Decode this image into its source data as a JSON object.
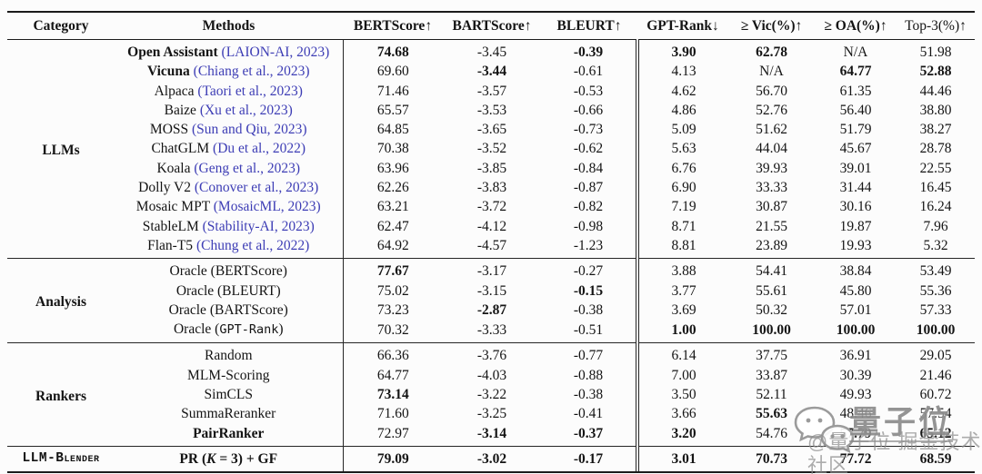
{
  "table": {
    "headers": [
      {
        "label": "Category"
      },
      {
        "label": "Methods"
      },
      {
        "label": "BERTScore↑"
      },
      {
        "label": "BARTScore↑"
      },
      {
        "label": "BLEURT↑"
      },
      {
        "label": "GPT-Rank↓"
      },
      {
        "label": "≥ Vic(%)↑"
      },
      {
        "label": "≥ OA(%)↑"
      },
      {
        "label": "Top-3(%)↑"
      }
    ],
    "sections": [
      {
        "id": "llms",
        "category": "LLMs",
        "category_mono": false,
        "rows": [
          {
            "name": [
              {
                "t": "Open Assistant ",
                "b": 1
              },
              {
                "t": "(LAION-AI, 2023)",
                "c": 1
              }
            ],
            "values": [
              "74.68",
              "-3.45",
              "-0.39",
              "3.90",
              "62.78",
              "N/A",
              "51.98"
            ],
            "bold": [
              1,
              0,
              1,
              1,
              1,
              0,
              0
            ]
          },
          {
            "name": [
              {
                "t": "Vicuna ",
                "b": 1
              },
              {
                "t": "(Chiang et al., 2023)",
                "c": 1
              }
            ],
            "values": [
              "69.60",
              "-3.44",
              "-0.61",
              "4.13",
              "N/A",
              "64.77",
              "52.88"
            ],
            "bold": [
              0,
              1,
              0,
              0,
              0,
              1,
              1
            ]
          },
          {
            "name": [
              {
                "t": "Alpaca "
              },
              {
                "t": "(Taori et al., 2023)",
                "c": 1
              }
            ],
            "values": [
              "71.46",
              "-3.57",
              "-0.53",
              "4.62",
              "56.70",
              "61.35",
              "44.46"
            ],
            "bold": [
              0,
              0,
              0,
              0,
              0,
              0,
              0
            ]
          },
          {
            "name": [
              {
                "t": "Baize "
              },
              {
                "t": "(Xu et al., 2023)",
                "c": 1
              }
            ],
            "values": [
              "65.57",
              "-3.53",
              "-0.66",
              "4.86",
              "52.76",
              "56.40",
              "38.80"
            ],
            "bold": [
              0,
              0,
              0,
              0,
              0,
              0,
              0
            ]
          },
          {
            "name": [
              {
                "t": "MOSS "
              },
              {
                "t": "(Sun and Qiu, 2023)",
                "c": 1
              }
            ],
            "values": [
              "64.85",
              "-3.65",
              "-0.73",
              "5.09",
              "51.62",
              "51.79",
              "38.27"
            ],
            "bold": [
              0,
              0,
              0,
              0,
              0,
              0,
              0
            ]
          },
          {
            "name": [
              {
                "t": "ChatGLM "
              },
              {
                "t": "(Du et al., 2022)",
                "c": 1
              }
            ],
            "values": [
              "70.38",
              "-3.52",
              "-0.62",
              "5.63",
              "44.04",
              "45.67",
              "28.78"
            ],
            "bold": [
              0,
              0,
              0,
              0,
              0,
              0,
              0
            ]
          },
          {
            "name": [
              {
                "t": "Koala "
              },
              {
                "t": "(Geng et al., 2023)",
                "c": 1
              }
            ],
            "values": [
              "63.96",
              "-3.85",
              "-0.84",
              "6.76",
              "39.93",
              "39.01",
              "22.55"
            ],
            "bold": [
              0,
              0,
              0,
              0,
              0,
              0,
              0
            ]
          },
          {
            "name": [
              {
                "t": "Dolly V2 "
              },
              {
                "t": "(Conover et al., 2023)",
                "c": 1
              }
            ],
            "values": [
              "62.26",
              "-3.83",
              "-0.87",
              "6.90",
              "33.33",
              "31.44",
              "16.45"
            ],
            "bold": [
              0,
              0,
              0,
              0,
              0,
              0,
              0
            ]
          },
          {
            "name": [
              {
                "t": "Mosaic MPT "
              },
              {
                "t": "(MosaicML, 2023)",
                "c": 1
              }
            ],
            "values": [
              "63.21",
              "-3.72",
              "-0.82",
              "7.19",
              "30.87",
              "30.16",
              "16.24"
            ],
            "bold": [
              0,
              0,
              0,
              0,
              0,
              0,
              0
            ]
          },
          {
            "name": [
              {
                "t": "StableLM "
              },
              {
                "t": "(Stability-AI, 2023)",
                "c": 1
              }
            ],
            "values": [
              "62.47",
              "-4.12",
              "-0.98",
              "8.71",
              "21.55",
              "19.87",
              "7.96"
            ],
            "bold": [
              0,
              0,
              0,
              0,
              0,
              0,
              0
            ]
          },
          {
            "name": [
              {
                "t": "Flan-T5 "
              },
              {
                "t": "(Chung et al., 2022)",
                "c": 1
              }
            ],
            "values": [
              "64.92",
              "-4.57",
              "-1.23",
              "8.81",
              "23.89",
              "19.93",
              "5.32"
            ],
            "bold": [
              0,
              0,
              0,
              0,
              0,
              0,
              0
            ]
          }
        ]
      },
      {
        "id": "analysis",
        "category": "Analysis",
        "category_mono": false,
        "rows": [
          {
            "name": [
              {
                "t": "Oracle (BERTScore)"
              }
            ],
            "values": [
              "77.67",
              "-3.17",
              "-0.27",
              "3.88",
              "54.41",
              "38.84",
              "53.49"
            ],
            "bold": [
              1,
              0,
              0,
              0,
              0,
              0,
              0
            ]
          },
          {
            "name": [
              {
                "t": "Oracle (BLEURT)"
              }
            ],
            "values": [
              "75.02",
              "-3.15",
              "-0.15",
              "3.77",
              "55.61",
              "45.80",
              "55.36"
            ],
            "bold": [
              0,
              0,
              1,
              0,
              0,
              0,
              0
            ]
          },
          {
            "name": [
              {
                "t": "Oracle (BARTScore)"
              }
            ],
            "values": [
              "73.23",
              "-2.87",
              "-0.38",
              "3.69",
              "50.32",
              "57.01",
              "57.33"
            ],
            "bold": [
              0,
              1,
              0,
              0,
              0,
              0,
              0
            ]
          },
          {
            "name": [
              {
                "t": "Oracle ("
              },
              {
                "t": "GPT-Rank",
                "m": 1
              },
              {
                "t": ")"
              }
            ],
            "values": [
              "70.32",
              "-3.33",
              "-0.51",
              "1.00",
              "100.00",
              "100.00",
              "100.00"
            ],
            "bold": [
              0,
              0,
              0,
              1,
              1,
              1,
              1
            ]
          }
        ]
      },
      {
        "id": "rankers",
        "category": "Rankers",
        "category_mono": false,
        "rows": [
          {
            "name": [
              {
                "t": "Random"
              }
            ],
            "values": [
              "66.36",
              "-3.76",
              "-0.77",
              "6.14",
              "37.75",
              "36.91",
              "29.05"
            ],
            "bold": [
              0,
              0,
              0,
              0,
              0,
              0,
              0
            ]
          },
          {
            "name": [
              {
                "t": "MLM-Scoring"
              }
            ],
            "values": [
              "64.77",
              "-4.03",
              "-0.88",
              "7.00",
              "33.87",
              "30.39",
              "21.46"
            ],
            "bold": [
              0,
              0,
              0,
              0,
              0,
              0,
              0
            ]
          },
          {
            "name": [
              {
                "t": "SimCLS"
              }
            ],
            "values": [
              "73.14",
              "-3.22",
              "-0.38",
              "3.50",
              "52.11",
              "49.93",
              "60.72"
            ],
            "bold": [
              1,
              0,
              0,
              0,
              0,
              0,
              0
            ]
          },
          {
            "name": [
              {
                "t": "SummaReranker"
              }
            ],
            "values": [
              "71.60",
              "-3.25",
              "-0.41",
              "3.66",
              "55.63",
              "48.46",
              "57.54"
            ],
            "bold": [
              0,
              0,
              0,
              0,
              1,
              0,
              0
            ]
          },
          {
            "name": [
              {
                "t": "PairRanker",
                "b": 1
              }
            ],
            "values": [
              "72.97",
              "-3.14",
              "-0.37",
              "3.20",
              "54.76",
              "57.79",
              "65.12"
            ],
            "bold": [
              0,
              1,
              1,
              1,
              0,
              1,
              1
            ]
          }
        ]
      },
      {
        "id": "llm-blender",
        "category": "LLM-Blender",
        "category_mono": true,
        "rows": [
          {
            "name": [
              {
                "t": "PR (",
                "b": 1
              },
              {
                "t": "K",
                "b": 1,
                "i": 1
              },
              {
                "t": " = 3) + GF",
                "b": 1
              }
            ],
            "values": [
              "79.09",
              "-3.02",
              "-0.17",
              "3.01",
              "70.73",
              "77.72",
              "68.59"
            ],
            "bold": [
              1,
              1,
              1,
              1,
              1,
              1,
              1
            ]
          }
        ]
      }
    ]
  },
  "watermark": {
    "icon": "chat-bubbles-icon",
    "brand_text": "量子位",
    "credit_text": "@量子位 掘金技术社区"
  }
}
